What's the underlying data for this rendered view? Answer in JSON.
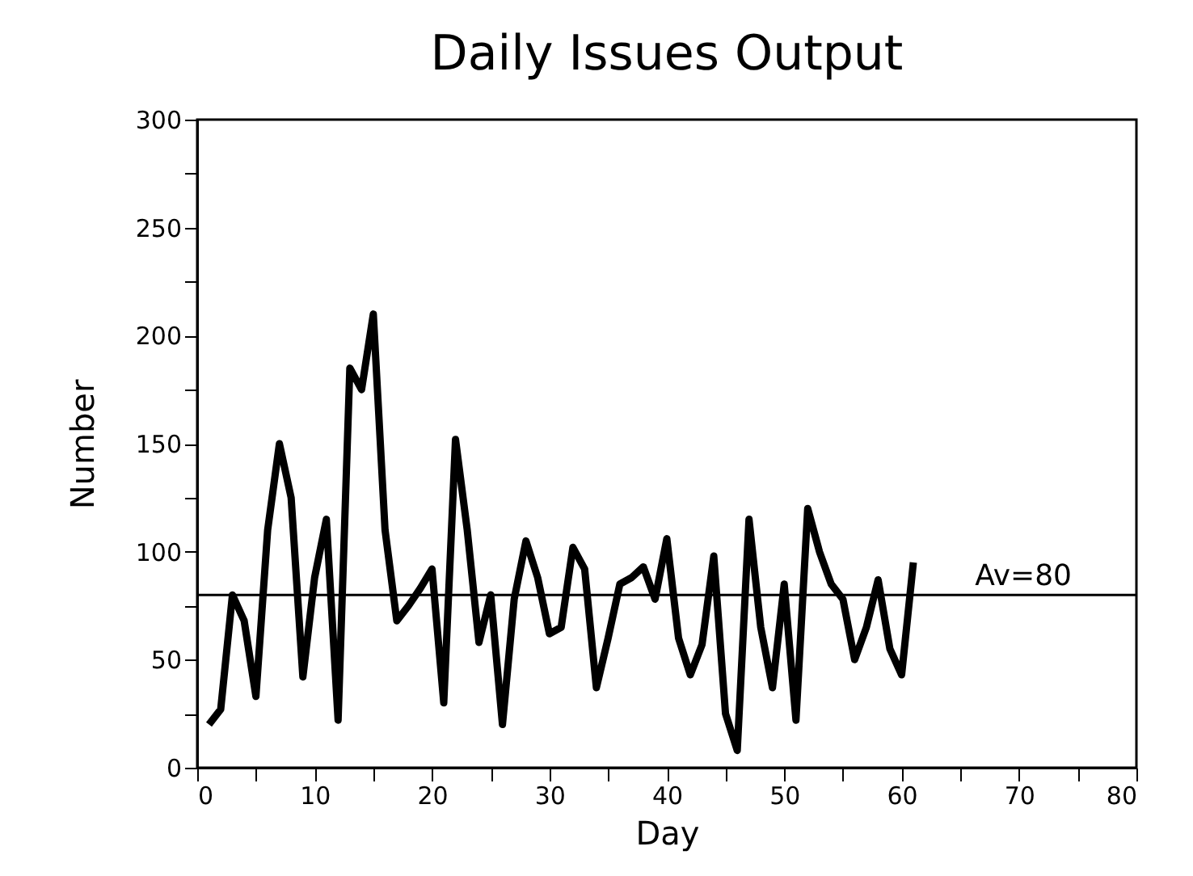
{
  "chart_data": {
    "type": "line",
    "title": "Daily Issues Output",
    "xlabel": "Day",
    "ylabel": "Number",
    "x": [
      1,
      2,
      3,
      4,
      5,
      6,
      7,
      8,
      9,
      10,
      11,
      12,
      13,
      14,
      15,
      16,
      17,
      18,
      19,
      20,
      21,
      22,
      23,
      24,
      25,
      26,
      27,
      28,
      29,
      30,
      31,
      32,
      33,
      34,
      35,
      36,
      37,
      38,
      39,
      40,
      41,
      42,
      43,
      44,
      45,
      46,
      47,
      48,
      49,
      50,
      51,
      52,
      53,
      54,
      55,
      56,
      57,
      58,
      59,
      60,
      61
    ],
    "series": [
      {
        "color": "#000000",
        "values": [
          20,
          27,
          80,
          68,
          33,
          110,
          150,
          125,
          42,
          88,
          115,
          22,
          185,
          175,
          210,
          110,
          68,
          75,
          83,
          92,
          30,
          152,
          110,
          58,
          80,
          20,
          78,
          105,
          88,
          62,
          65,
          102,
          92,
          37,
          60,
          85,
          88,
          93,
          78,
          106,
          60,
          43,
          57,
          98,
          25,
          8,
          115,
          65,
          37,
          85,
          22,
          120,
          100,
          85,
          78,
          50,
          65,
          87,
          55,
          43,
          95
        ]
      }
    ],
    "xlim": [
      0,
      80
    ],
    "ylim": [
      0,
      300
    ],
    "xticks": [
      0,
      {
        "value": 5,
        "label": null
      },
      10,
      {
        "value": 15,
        "label": null
      },
      20,
      {
        "value": 25,
        "label": null
      },
      30,
      {
        "value": 35,
        "label": null
      },
      40,
      {
        "value": 45,
        "label": null
      },
      50,
      {
        "value": 55,
        "label": null
      },
      60,
      {
        "value": 65,
        "label": null
      },
      70,
      {
        "value": 75,
        "label": null
      },
      80
    ],
    "yticks": [
      0,
      {
        "value": 25,
        "label": null
      },
      50,
      {
        "value": 75,
        "label": null
      },
      100,
      {
        "value": 125,
        "label": null
      },
      150,
      {
        "value": 175,
        "label": null
      },
      200,
      {
        "value": 225,
        "label": null
      },
      250,
      {
        "value": 275,
        "label": null
      },
      300
    ],
    "ref_lines": [
      {
        "axis": "y",
        "value": 80,
        "label": "Av=80",
        "color": "#000000"
      }
    ],
    "grid": false,
    "marker": "none",
    "line_style": "solid"
  }
}
